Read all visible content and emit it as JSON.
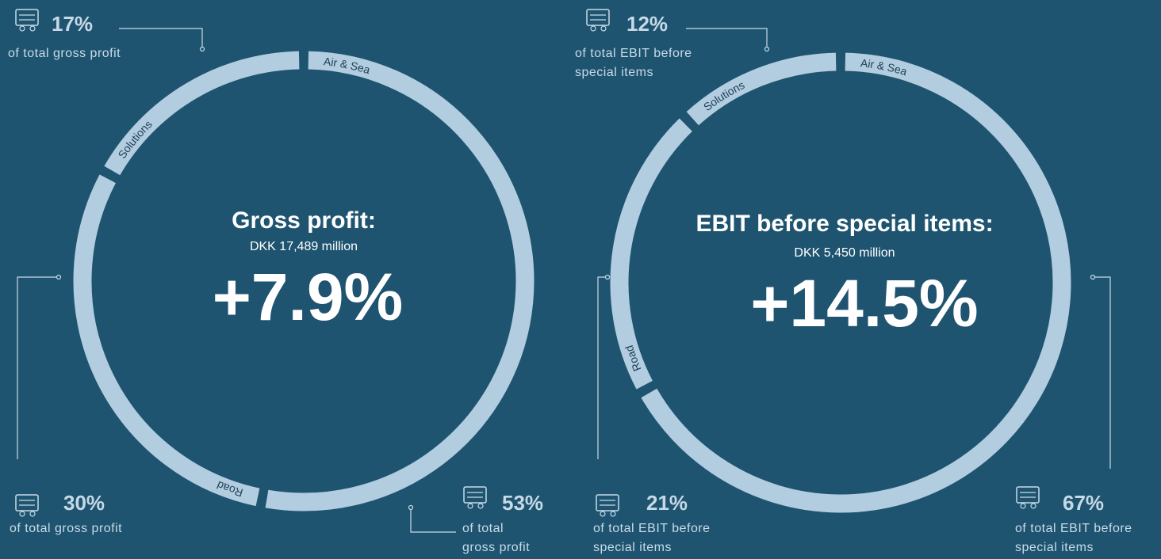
{
  "chart_data": [
    {
      "type": "donut",
      "title": "Gross profit:",
      "subtitle": "DKK 17,489 million",
      "annotation": "+7.9%",
      "categories": [
        "Air & Sea",
        "Road",
        "Solutions"
      ],
      "values": [
        53,
        30,
        17
      ],
      "value_labels": [
        "53%",
        "30%",
        "17%"
      ],
      "label_texts": [
        [
          "of total",
          "gross profit"
        ],
        [
          "of total gross profit"
        ],
        [
          "of total gross profit"
        ]
      ],
      "color": "#b3cde0"
    },
    {
      "type": "donut",
      "title": "EBIT before special items:",
      "subtitle": "DKK 5,450 million",
      "annotation": "+14.5%",
      "categories": [
        "Air & Sea",
        "Road",
        "Solutions"
      ],
      "values": [
        67,
        21,
        12
      ],
      "value_labels": [
        "67%",
        "21%",
        "12%"
      ],
      "label_texts": [
        [
          "of total EBIT before",
          "special items"
        ],
        [
          "of total EBIT before",
          "special items"
        ],
        [
          "of total EBIT before",
          "special items"
        ]
      ],
      "color": "#b3cde0"
    }
  ]
}
